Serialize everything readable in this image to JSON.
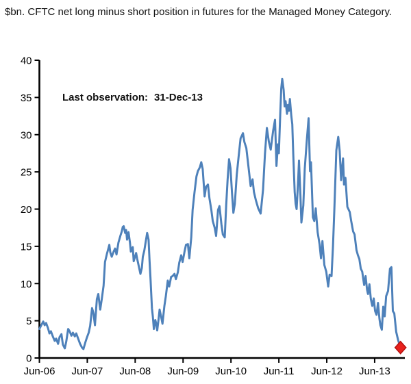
{
  "header": {
    "title": "$bn. CFTC net long minus short position in futures for the Managed Money Category."
  },
  "annotation": {
    "label": "Last observation:",
    "value": "31-Dec-13"
  },
  "chart_data": {
    "type": "line",
    "title": "$bn. CFTC net long minus short position in futures for the Managed Money Category.",
    "xlabel": "",
    "ylabel": "$bn",
    "xlim": [
      2006.42,
      2014.05
    ],
    "ylim": [
      0,
      40
    ],
    "grid": false,
    "legend_position": "none",
    "axis_color": "#000000",
    "y_ticks": [
      0,
      5,
      10,
      15,
      20,
      25,
      30,
      35,
      40
    ],
    "x_ticks": [
      {
        "t": 2006.42,
        "label": "Jun-06"
      },
      {
        "t": 2007.42,
        "label": "Jun-07"
      },
      {
        "t": 2008.42,
        "label": "Jun-08"
      },
      {
        "t": 2009.42,
        "label": "Jun-09"
      },
      {
        "t": 2010.42,
        "label": "Jun-10"
      },
      {
        "t": 2011.42,
        "label": "Jun-11"
      },
      {
        "t": 2012.42,
        "label": "Jun-12"
      },
      {
        "t": 2013.42,
        "label": "Jun-13"
      }
    ],
    "series": [
      {
        "name": "CFTC net long minus short position in futures, Managed Money category ($bn)",
        "color": "#4E81BA",
        "points": [
          [
            2006.42,
            3.9
          ],
          [
            2006.46,
            4.4
          ],
          [
            2006.5,
            4.9
          ],
          [
            2006.53,
            4.4
          ],
          [
            2006.56,
            4.7
          ],
          [
            2006.6,
            4.0
          ],
          [
            2006.63,
            3.3
          ],
          [
            2006.66,
            3.6
          ],
          [
            2006.7,
            2.9
          ],
          [
            2006.74,
            2.3
          ],
          [
            2006.77,
            2.6
          ],
          [
            2006.81,
            1.9
          ],
          [
            2006.84,
            2.8
          ],
          [
            2006.88,
            3.2
          ],
          [
            2006.91,
            1.8
          ],
          [
            2006.95,
            1.3
          ],
          [
            2006.98,
            2.2
          ],
          [
            2007.02,
            3.9
          ],
          [
            2007.05,
            3.6
          ],
          [
            2007.09,
            3.0
          ],
          [
            2007.12,
            3.4
          ],
          [
            2007.16,
            2.9
          ],
          [
            2007.19,
            3.3
          ],
          [
            2007.23,
            2.6
          ],
          [
            2007.27,
            1.9
          ],
          [
            2007.31,
            1.4
          ],
          [
            2007.34,
            1.2
          ],
          [
            2007.38,
            2.1
          ],
          [
            2007.41,
            2.7
          ],
          [
            2007.45,
            3.4
          ],
          [
            2007.48,
            4.3
          ],
          [
            2007.52,
            6.7
          ],
          [
            2007.55,
            6.0
          ],
          [
            2007.58,
            4.4
          ],
          [
            2007.62,
            7.9
          ],
          [
            2007.65,
            8.6
          ],
          [
            2007.69,
            6.5
          ],
          [
            2007.72,
            7.8
          ],
          [
            2007.76,
            9.7
          ],
          [
            2007.79,
            12.9
          ],
          [
            2007.83,
            14.0
          ],
          [
            2007.86,
            14.7
          ],
          [
            2007.88,
            15.2
          ],
          [
            2007.9,
            14.2
          ],
          [
            2007.93,
            13.6
          ],
          [
            2007.97,
            14.3
          ],
          [
            2008.0,
            14.7
          ],
          [
            2008.03,
            13.9
          ],
          [
            2008.07,
            15.5
          ],
          [
            2008.11,
            16.4
          ],
          [
            2008.14,
            17.0
          ],
          [
            2008.16,
            17.6
          ],
          [
            2008.18,
            17.7
          ],
          [
            2008.21,
            16.8
          ],
          [
            2008.23,
            17.2
          ],
          [
            2008.25,
            15.9
          ],
          [
            2008.28,
            16.9
          ],
          [
            2008.31,
            15.5
          ],
          [
            2008.33,
            14.3
          ],
          [
            2008.37,
            14.9
          ],
          [
            2008.39,
            13.0
          ],
          [
            2008.44,
            14.1
          ],
          [
            2008.46,
            13.4
          ],
          [
            2008.5,
            12.2
          ],
          [
            2008.53,
            11.3
          ],
          [
            2008.56,
            12.1
          ],
          [
            2008.58,
            13.6
          ],
          [
            2008.61,
            14.4
          ],
          [
            2008.64,
            15.6
          ],
          [
            2008.67,
            16.8
          ],
          [
            2008.7,
            15.9
          ],
          [
            2008.72,
            13.1
          ],
          [
            2008.74,
            10.7
          ],
          [
            2008.77,
            6.7
          ],
          [
            2008.79,
            5.5
          ],
          [
            2008.81,
            3.9
          ],
          [
            2008.84,
            5.1
          ],
          [
            2008.86,
            4.6
          ],
          [
            2008.88,
            3.7
          ],
          [
            2008.91,
            5.3
          ],
          [
            2008.93,
            6.5
          ],
          [
            2008.96,
            5.6
          ],
          [
            2008.99,
            4.6
          ],
          [
            2009.03,
            7.0
          ],
          [
            2009.06,
            8.3
          ],
          [
            2009.1,
            10.4
          ],
          [
            2009.13,
            9.6
          ],
          [
            2009.17,
            10.9
          ],
          [
            2009.2,
            11.0
          ],
          [
            2009.24,
            11.3
          ],
          [
            2009.27,
            10.6
          ],
          [
            2009.31,
            11.5
          ],
          [
            2009.34,
            12.8
          ],
          [
            2009.38,
            13.8
          ],
          [
            2009.41,
            12.9
          ],
          [
            2009.45,
            14.3
          ],
          [
            2009.48,
            15.2
          ],
          [
            2009.52,
            15.3
          ],
          [
            2009.55,
            13.4
          ],
          [
            2009.59,
            16.2
          ],
          [
            2009.62,
            19.9
          ],
          [
            2009.66,
            22.3
          ],
          [
            2009.7,
            24.4
          ],
          [
            2009.73,
            25.1
          ],
          [
            2009.77,
            25.6
          ],
          [
            2009.8,
            26.3
          ],
          [
            2009.83,
            25.4
          ],
          [
            2009.87,
            21.7
          ],
          [
            2009.9,
            23.0
          ],
          [
            2009.94,
            23.3
          ],
          [
            2009.97,
            21.5
          ],
          [
            2010.01,
            19.9
          ],
          [
            2010.04,
            18.4
          ],
          [
            2010.08,
            17.5
          ],
          [
            2010.11,
            16.4
          ],
          [
            2010.15,
            19.9
          ],
          [
            2010.18,
            20.4
          ],
          [
            2010.22,
            18.0
          ],
          [
            2010.25,
            16.6
          ],
          [
            2010.29,
            16.2
          ],
          [
            2010.32,
            20.5
          ],
          [
            2010.35,
            24.0
          ],
          [
            2010.38,
            26.7
          ],
          [
            2010.41,
            25.5
          ],
          [
            2010.44,
            22.3
          ],
          [
            2010.47,
            19.5
          ],
          [
            2010.5,
            20.7
          ],
          [
            2010.54,
            24.6
          ],
          [
            2010.58,
            27.1
          ],
          [
            2010.62,
            29.5
          ],
          [
            2010.67,
            30.2
          ],
          [
            2010.7,
            29.0
          ],
          [
            2010.74,
            28.2
          ],
          [
            2010.79,
            25.4
          ],
          [
            2010.83,
            23.1
          ],
          [
            2010.87,
            24.0
          ],
          [
            2010.9,
            22.3
          ],
          [
            2010.94,
            21.2
          ],
          [
            2010.99,
            20.1
          ],
          [
            2011.04,
            19.4
          ],
          [
            2011.09,
            22.6
          ],
          [
            2011.13,
            27.4
          ],
          [
            2011.17,
            30.9
          ],
          [
            2011.21,
            29.1
          ],
          [
            2011.25,
            28.0
          ],
          [
            2011.3,
            30.5
          ],
          [
            2011.34,
            32.0
          ],
          [
            2011.37,
            25.8
          ],
          [
            2011.4,
            28.7
          ],
          [
            2011.42,
            27.5
          ],
          [
            2011.45,
            33.0
          ],
          [
            2011.47,
            36.2
          ],
          [
            2011.49,
            37.5
          ],
          [
            2011.52,
            36.0
          ],
          [
            2011.54,
            33.8
          ],
          [
            2011.56,
            34.5
          ],
          [
            2011.59,
            32.8
          ],
          [
            2011.61,
            34.0
          ],
          [
            2011.63,
            33.2
          ],
          [
            2011.65,
            34.8
          ],
          [
            2011.68,
            32.5
          ],
          [
            2011.7,
            31.4
          ],
          [
            2011.72,
            27.4
          ],
          [
            2011.75,
            22.3
          ],
          [
            2011.77,
            20.7
          ],
          [
            2011.79,
            20.0
          ],
          [
            2011.82,
            23.5
          ],
          [
            2011.84,
            26.5
          ],
          [
            2011.87,
            21.8
          ],
          [
            2011.89,
            18.2
          ],
          [
            2011.93,
            20.5
          ],
          [
            2011.96,
            25.4
          ],
          [
            2012.0,
            29.0
          ],
          [
            2012.04,
            32.2
          ],
          [
            2012.07,
            25.1
          ],
          [
            2012.09,
            26.3
          ],
          [
            2012.13,
            18.9
          ],
          [
            2012.16,
            18.4
          ],
          [
            2012.19,
            20.1
          ],
          [
            2012.23,
            16.9
          ],
          [
            2012.27,
            15.3
          ],
          [
            2012.3,
            13.4
          ],
          [
            2012.33,
            15.7
          ],
          [
            2012.37,
            12.5
          ],
          [
            2012.41,
            11.6
          ],
          [
            2012.45,
            9.6
          ],
          [
            2012.48,
            11.2
          ],
          [
            2012.52,
            11.0
          ],
          [
            2012.55,
            15.0
          ],
          [
            2012.58,
            20.2
          ],
          [
            2012.62,
            27.9
          ],
          [
            2012.66,
            29.7
          ],
          [
            2012.69,
            27.8
          ],
          [
            2012.72,
            23.9
          ],
          [
            2012.76,
            26.8
          ],
          [
            2012.78,
            23.3
          ],
          [
            2012.81,
            24.2
          ],
          [
            2012.85,
            20.3
          ],
          [
            2012.9,
            19.6
          ],
          [
            2012.93,
            18.4
          ],
          [
            2012.97,
            17.0
          ],
          [
            2013.0,
            16.6
          ],
          [
            2013.04,
            14.5
          ],
          [
            2013.07,
            13.8
          ],
          [
            2013.1,
            13.3
          ],
          [
            2013.13,
            12.0
          ],
          [
            2013.16,
            11.6
          ],
          [
            2013.2,
            9.8
          ],
          [
            2013.23,
            11.0
          ],
          [
            2013.26,
            9.2
          ],
          [
            2013.28,
            8.6
          ],
          [
            2013.31,
            9.9
          ],
          [
            2013.34,
            7.9
          ],
          [
            2013.37,
            7.0
          ],
          [
            2013.4,
            8.0
          ],
          [
            2013.43,
            6.3
          ],
          [
            2013.46,
            5.8
          ],
          [
            2013.49,
            7.4
          ],
          [
            2013.52,
            5.3
          ],
          [
            2013.54,
            4.4
          ],
          [
            2013.57,
            3.8
          ],
          [
            2013.6,
            6.9
          ],
          [
            2013.63,
            5.6
          ],
          [
            2013.66,
            8.3
          ],
          [
            2013.7,
            9.0
          ],
          [
            2013.74,
            12.0
          ],
          [
            2013.77,
            12.2
          ],
          [
            2013.8,
            6.3
          ],
          [
            2013.83,
            6.0
          ],
          [
            2013.87,
            3.5
          ],
          [
            2013.91,
            2.4
          ],
          [
            2013.96,
            1.4
          ]
        ]
      }
    ],
    "last_point": {
      "date": "31-Dec-13",
      "t": 2013.96,
      "value": 1.4,
      "marker": "diamond",
      "fill": "#E8211D",
      "stroke": "#B5110F"
    }
  }
}
